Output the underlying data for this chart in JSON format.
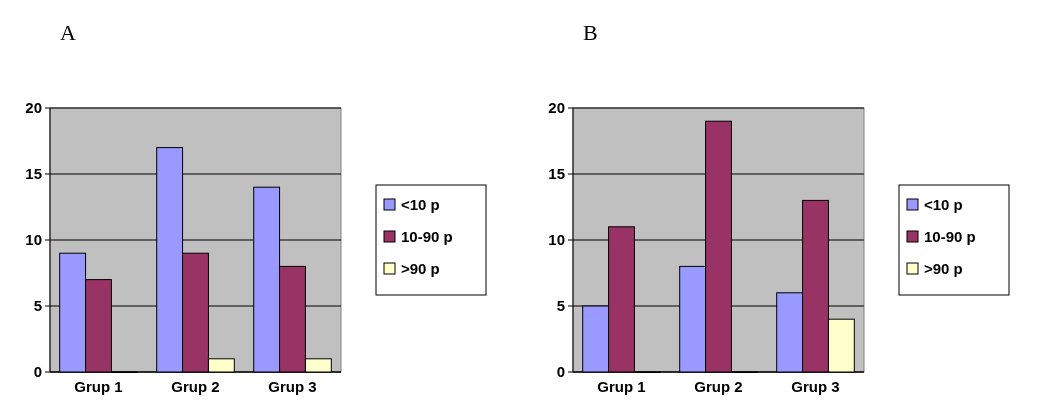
{
  "chart_data": [
    {
      "type": "bar",
      "title": "A",
      "categories": [
        "Grup 1",
        "Grup 2",
        "Grup 3"
      ],
      "ylim": [
        0,
        20
      ],
      "yticks": [
        0,
        5,
        10,
        15,
        20
      ],
      "grid": "y",
      "legend": "right",
      "series": [
        {
          "name": "<10 p",
          "color": "#9999ff",
          "values": [
            9,
            17,
            14
          ]
        },
        {
          "name": "10-90 p",
          "color": "#993366",
          "values": [
            7,
            9,
            8
          ]
        },
        {
          "name": ">90 p",
          "color": "#ffffcc",
          "values": [
            0,
            1,
            1
          ]
        }
      ]
    },
    {
      "type": "bar",
      "title": "B",
      "categories": [
        "Grup 1",
        "Grup 2",
        "Grup 3"
      ],
      "ylim": [
        0,
        20
      ],
      "yticks": [
        0,
        5,
        10,
        15,
        20
      ],
      "grid": "y",
      "legend": "right",
      "series": [
        {
          "name": "<10 p",
          "color": "#9999ff",
          "values": [
            5,
            8,
            6
          ]
        },
        {
          "name": "10-90 p",
          "color": "#993366",
          "values": [
            11,
            19,
            13
          ]
        },
        {
          "name": ">90 p",
          "color": "#ffffcc",
          "values": [
            0,
            0,
            4
          ]
        }
      ]
    }
  ]
}
